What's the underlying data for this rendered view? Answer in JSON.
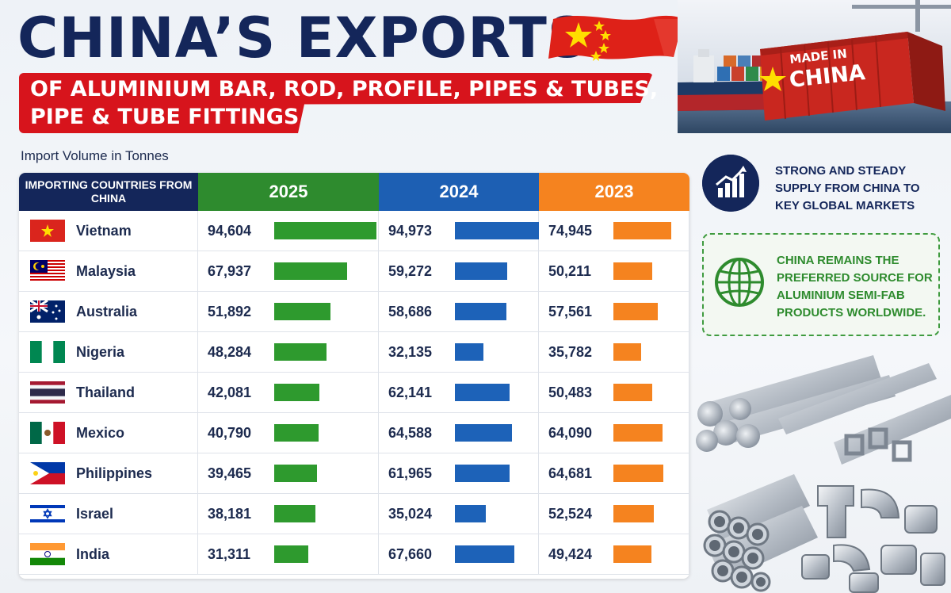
{
  "title": "CHINA’S EXPORTS",
  "subtitle_line1": "OF ALUMINIUM BAR, ROD, PROFILE, PIPES & TUBES,",
  "subtitle_line2": "PIPE & TUBE FITTINGS",
  "container_label_line1": "MADE IN",
  "container_label_line2": "CHINA",
  "unit_label": "Import Volume in Tonnes",
  "header": {
    "country_col": "IMPORTING COUNTRIES FROM CHINA",
    "years": [
      "2025",
      "2024",
      "2023"
    ]
  },
  "colors": {
    "navy": "#14265a",
    "green_2025": "#2e9a2e",
    "blue_2024": "#1d62b8",
    "orange_2023": "#f5831f",
    "red": "#d7141c"
  },
  "side": {
    "card1": "STRONG AND STEADY SUPPLY FROM CHINA TO KEY GLOBAL MARKETS",
    "card1_icon": "growth-chart-icon",
    "card2": "CHINA REMAINS THE PREFERRED SOURCE FOR ALUMINIUM SEMI-FAB PRODUCTS WORLDWIDE.",
    "card2_icon": "globe-icon"
  },
  "chart_data": {
    "type": "table",
    "columns": [
      "2025",
      "2024",
      "2023"
    ],
    "rows": [
      {
        "country": "Vietnam",
        "values": [
          94604,
          94973,
          74945
        ],
        "labels": [
          "94,604",
          "94,973",
          "74,945"
        ]
      },
      {
        "country": "Malaysia",
        "values": [
          67937,
          59272,
          50211
        ],
        "labels": [
          "67,937",
          "59,272",
          "50,211"
        ]
      },
      {
        "country": "Australia",
        "values": [
          51892,
          58686,
          57561
        ],
        "labels": [
          "51,892",
          "58,686",
          "57,561"
        ]
      },
      {
        "country": "Nigeria",
        "values": [
          48284,
          32135,
          35782
        ],
        "labels": [
          "48,284",
          "32,135",
          "35,782"
        ]
      },
      {
        "country": "Thailand",
        "values": [
          42081,
          62141,
          50483
        ],
        "labels": [
          "42,081",
          "62,141",
          "50,483"
        ]
      },
      {
        "country": "Mexico",
        "values": [
          40790,
          64588,
          64090
        ],
        "labels": [
          "40,790",
          "64,588",
          "64,090"
        ]
      },
      {
        "country": "Philippines",
        "values": [
          39465,
          61965,
          64681
        ],
        "labels": [
          "39,465",
          "61,965",
          "64,681"
        ]
      },
      {
        "country": "Israel",
        "values": [
          38181,
          35024,
          52524
        ],
        "labels": [
          "38,181",
          "35,024",
          "52,524"
        ]
      },
      {
        "country": "India",
        "values": [
          31311,
          67660,
          49424
        ],
        "labels": [
          "31,311",
          "67,660",
          "49,424"
        ]
      }
    ]
  }
}
